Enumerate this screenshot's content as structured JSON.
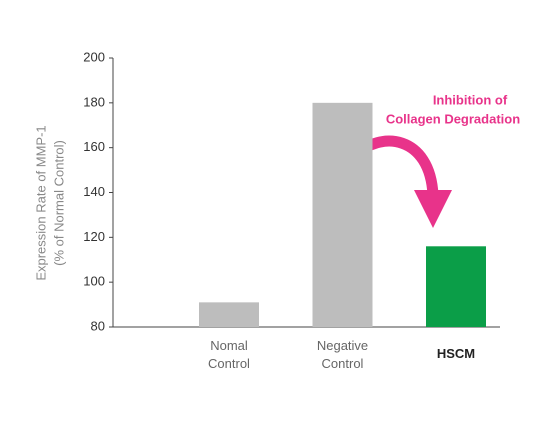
{
  "chart_data": {
    "type": "bar",
    "ylabel": [
      "Expression Rate of MMP-1",
      "(% of Normal Control)"
    ],
    "annotation": [
      "Inhibition of",
      "Collagen Degradation"
    ],
    "categories": [
      "Nomal Control",
      "Negative Control",
      "HSCM"
    ],
    "values": [
      91,
      180,
      116
    ],
    "colors": [
      "#bdbdbd",
      "#bdbdbd",
      "#0b9e48"
    ],
    "ylim": [
      80,
      200
    ],
    "yticks": [
      80,
      100,
      120,
      140,
      160,
      180,
      200
    ],
    "grid": false
  }
}
